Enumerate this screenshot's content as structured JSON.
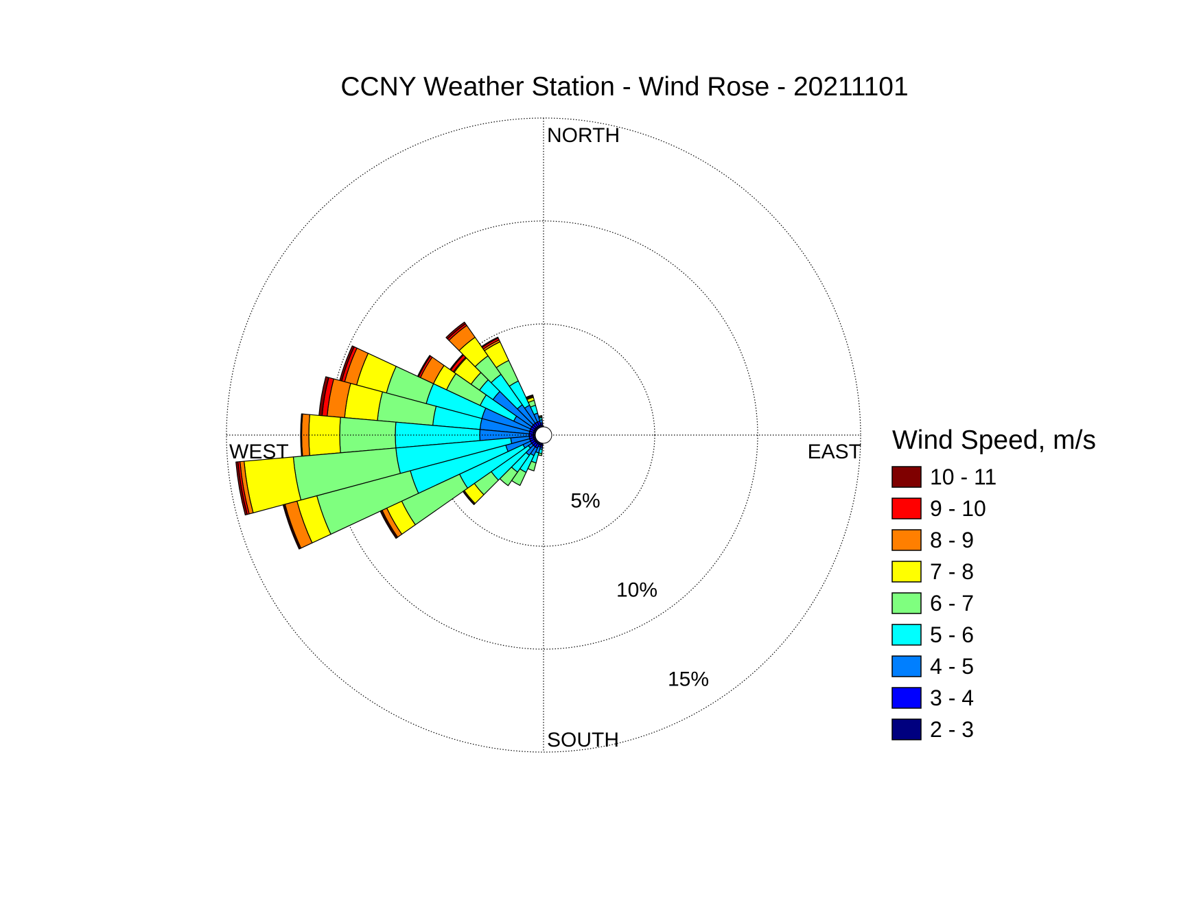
{
  "chart_data": {
    "type": "wind-rose",
    "title": "CCNY Weather Station - Wind Rose - 20211101",
    "direction_labels": {
      "north": "NORTH",
      "south": "SOUTH",
      "east": "EAST",
      "west": "WEST"
    },
    "radial_axis": {
      "unit": "percent",
      "max": 15,
      "ticks": [
        5,
        10,
        15
      ],
      "tick_labels": [
        "5%",
        "10%",
        "15%"
      ],
      "tick_label_angle_deg": 150,
      "grid": true,
      "grid_style": "dotted"
    },
    "legend": {
      "title": "Wind Speed, m/s",
      "placement": "right"
    },
    "speed_bins": [
      {
        "label": "2 - 3",
        "color": "#00007f"
      },
      {
        "label": "3 - 4",
        "color": "#0000ff"
      },
      {
        "label": "4 - 5",
        "color": "#007fff"
      },
      {
        "label": "5 - 6",
        "color": "#00ffff"
      },
      {
        "label": "6 - 7",
        "color": "#7fff7f"
      },
      {
        "label": "7 - 8",
        "color": "#ffff00"
      },
      {
        "label": "8 - 9",
        "color": "#ff7f00"
      },
      {
        "label": "9 - 10",
        "color": "#ff0000"
      },
      {
        "label": "10 - 11",
        "color": "#7f0000"
      }
    ],
    "sector_width_deg": 10,
    "sectors": [
      {
        "direction_deg": 310,
        "cumulative_pct": [
          0.1,
          0.3,
          2.6,
          3.4,
          3.9,
          4.9,
          4.95,
          5.1,
          5.15
        ]
      },
      {
        "direction_deg": 300,
        "cumulative_pct": [
          0.1,
          0.3,
          1.2,
          3.0,
          4.8,
          5.5,
          6.2,
          6.3,
          6.35
        ]
      },
      {
        "direction_deg": 290,
        "cumulative_pct": [
          0.1,
          0.3,
          2.7,
          5.5,
          7.5,
          9.0,
          9.6,
          9.75,
          9.85
        ]
      },
      {
        "direction_deg": 280,
        "cumulative_pct": [
          0.1,
          0.3,
          2.7,
          5.0,
          7.7,
          9.3,
          10.15,
          10.4,
          10.55
        ]
      },
      {
        "direction_deg": 270,
        "cumulative_pct": [
          0.1,
          0.3,
          2.7,
          6.8,
          9.5,
          11.0,
          11.35,
          11.38,
          11.4
        ]
      },
      {
        "direction_deg": 260,
        "cumulative_pct": [
          0.1,
          0.3,
          1.2,
          6.8,
          11.8,
          14.2,
          14.4,
          14.5,
          14.6
        ]
      },
      {
        "direction_deg": 250,
        "cumulative_pct": [
          0.1,
          0.3,
          1.5,
          6.3,
          11.0,
          12.0,
          12.6,
          12.65,
          12.7
        ]
      },
      {
        "direction_deg": 240,
        "cumulative_pct": [
          0.1,
          0.3,
          0.7,
          4.1,
          7.2,
          8.0,
          8.25,
          8.3,
          8.35
        ]
      },
      {
        "direction_deg": 230,
        "cumulative_pct": [
          0.1,
          0.3,
          0.5,
          2.7,
          3.7,
          4.3,
          4.35,
          4.36,
          4.38
        ]
      },
      {
        "direction_deg": 320,
        "cumulative_pct": [
          0.1,
          0.3,
          1.4,
          3.2,
          4.3,
          5.4,
          6.1,
          6.2,
          6.3
        ]
      },
      {
        "direction_deg": 330,
        "cumulative_pct": [
          0.1,
          0.3,
          1.2,
          2.5,
          3.6,
          4.6,
          4.7,
          4.8,
          4.85
        ]
      },
      {
        "direction_deg": 340,
        "cumulative_pct": [
          0.1,
          0.3,
          0.7,
          1.1,
          1.35,
          1.5,
          1.55,
          1.6,
          1.62
        ]
      },
      {
        "direction_deg": 350,
        "cumulative_pct": [
          0.1,
          0.2,
          0.35,
          0.45,
          0.5,
          0.55,
          0.55,
          0.55,
          0.55
        ]
      },
      {
        "direction_deg": 220,
        "cumulative_pct": [
          0.1,
          0.3,
          0.8,
          1.8,
          2.6,
          2.6,
          2.6,
          2.6,
          2.6
        ]
      },
      {
        "direction_deg": 210,
        "cumulative_pct": [
          0.1,
          0.3,
          0.7,
          1.6,
          2.3,
          2.3,
          2.3,
          2.3,
          2.3
        ]
      },
      {
        "direction_deg": 200,
        "cumulative_pct": [
          0.1,
          0.2,
          0.5,
          1.0,
          1.4,
          1.4,
          1.4,
          1.4,
          1.4
        ]
      },
      {
        "direction_deg": 190,
        "cumulative_pct": [
          0.1,
          0.2,
          0.3,
          0.5,
          0.6,
          0.6,
          0.6,
          0.6,
          0.6
        ]
      }
    ]
  }
}
